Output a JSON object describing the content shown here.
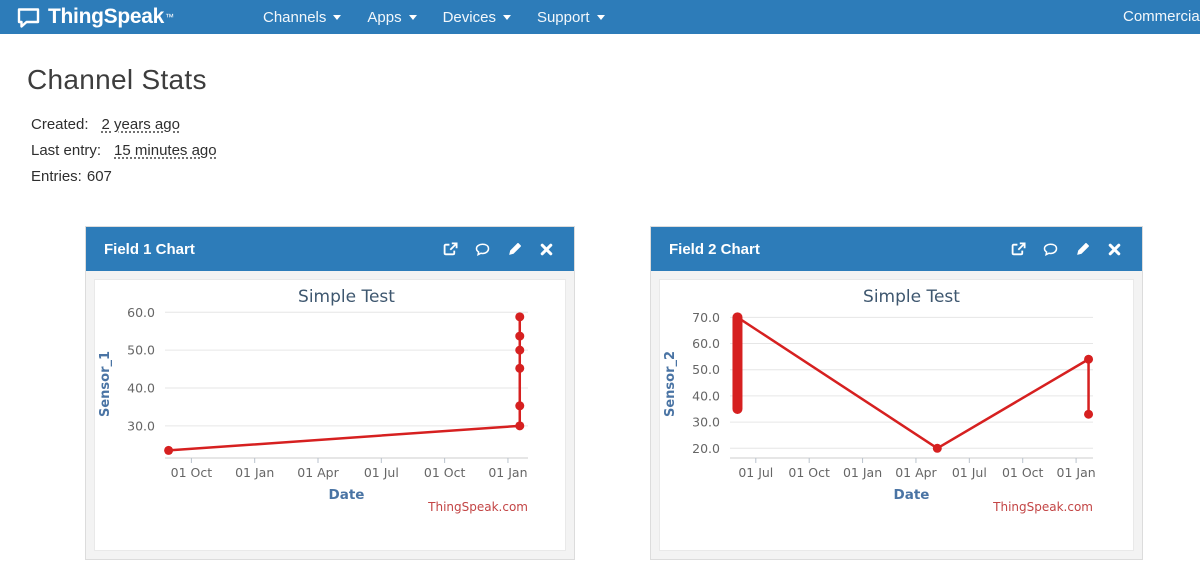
{
  "navbar": {
    "brand": "ThingSpeak",
    "brand_tm": "™",
    "items": [
      {
        "label": "Channels"
      },
      {
        "label": "Apps"
      },
      {
        "label": "Devices"
      },
      {
        "label": "Support"
      }
    ],
    "right_item": "Commercial",
    "colors": {
      "bg": "#2d7cb9",
      "text": "#ffffff"
    }
  },
  "page": {
    "title": "Channel Stats",
    "stats": [
      {
        "label": "Created:",
        "value": "2 years ago",
        "underlined": true
      },
      {
        "label": "Last entry:",
        "value": "15 minutes ago",
        "underlined": true
      },
      {
        "label": "Entries:",
        "value": "607",
        "underlined": false
      }
    ]
  },
  "panels": [
    {
      "title": "Field 1 Chart",
      "icons": [
        "external-link",
        "comment",
        "edit-pencil",
        "close"
      ]
    },
    {
      "title": "Field 2 Chart",
      "icons": [
        "external-link",
        "comment",
        "edit-pencil",
        "close"
      ]
    }
  ],
  "chart_style": {
    "title_color": "#3e576f",
    "axis_title_color": "#4a74a4",
    "tick_color": "#666666",
    "grid_color": "#e6e6e6",
    "axis_line_color": "#cccccc",
    "tick_mark_color": "#b9c2cc",
    "credit_color": "#c34545"
  },
  "chart_data": [
    {
      "type": "line",
      "title": "Simple Test",
      "xlabel": "Date",
      "ylabel": "Sensor_1",
      "credits": "ThingSpeak.com",
      "x_unit": "months relative to first x tick",
      "xlim": [
        -1.25,
        15.95
      ],
      "ylim": [
        21.5,
        60.6
      ],
      "yticks": [
        30,
        40,
        50,
        60
      ],
      "xticks": [
        {
          "x": 0,
          "label": "01 Oct"
        },
        {
          "x": 3,
          "label": "01 Jan"
        },
        {
          "x": 6,
          "label": "01 Apr"
        },
        {
          "x": 9,
          "label": "01 Jul"
        },
        {
          "x": 12,
          "label": "01 Oct"
        },
        {
          "x": 15,
          "label": "01 Jan"
        }
      ],
      "grid": "horizontal",
      "legend": "none",
      "series": [
        {
          "name": "Sensor_1",
          "color": "#d62020",
          "line": [
            [
              -1.08,
              23.5
            ],
            [
              15.56,
              30.0
            ],
            [
              15.56,
              58.8
            ]
          ],
          "markers": [
            [
              -1.08,
              23.5
            ],
            [
              15.56,
              30.0
            ],
            [
              15.56,
              35.3
            ],
            [
              15.56,
              45.2
            ],
            [
              15.56,
              50.0
            ],
            [
              15.56,
              53.7
            ],
            [
              15.56,
              58.8
            ]
          ]
        }
      ]
    },
    {
      "type": "line",
      "title": "Simple Test",
      "xlabel": "Date",
      "ylabel": "Sensor_2",
      "credits": "ThingSpeak.com",
      "x_unit": "months relative to first x tick",
      "xlim": [
        -1.45,
        18.95
      ],
      "ylim": [
        16.3,
        72.8
      ],
      "yticks": [
        20,
        30,
        40,
        50,
        60,
        70
      ],
      "xticks": [
        {
          "x": 0,
          "label": "01 Jul"
        },
        {
          "x": 3,
          "label": "01 Oct"
        },
        {
          "x": 6,
          "label": "01 Jan"
        },
        {
          "x": 9,
          "label": "01 Apr"
        },
        {
          "x": 12,
          "label": "01 Jul"
        },
        {
          "x": 15,
          "label": "01 Oct"
        },
        {
          "x": 18,
          "label": "01 Jan"
        }
      ],
      "grid": "horizontal",
      "legend": "none",
      "series": [
        {
          "name": "Sensor_2",
          "color": "#d62020",
          "cluster": {
            "x": -1.03,
            "y_min": 35.0,
            "y_max": 70.0
          },
          "line": [
            [
              -1.03,
              70.0
            ],
            [
              10.2,
              20.0
            ],
            [
              18.7,
              54.0
            ],
            [
              18.7,
              33.0
            ]
          ],
          "markers": [
            [
              10.2,
              20.0
            ],
            [
              18.7,
              54.0
            ],
            [
              18.7,
              33.0
            ]
          ]
        }
      ]
    }
  ]
}
